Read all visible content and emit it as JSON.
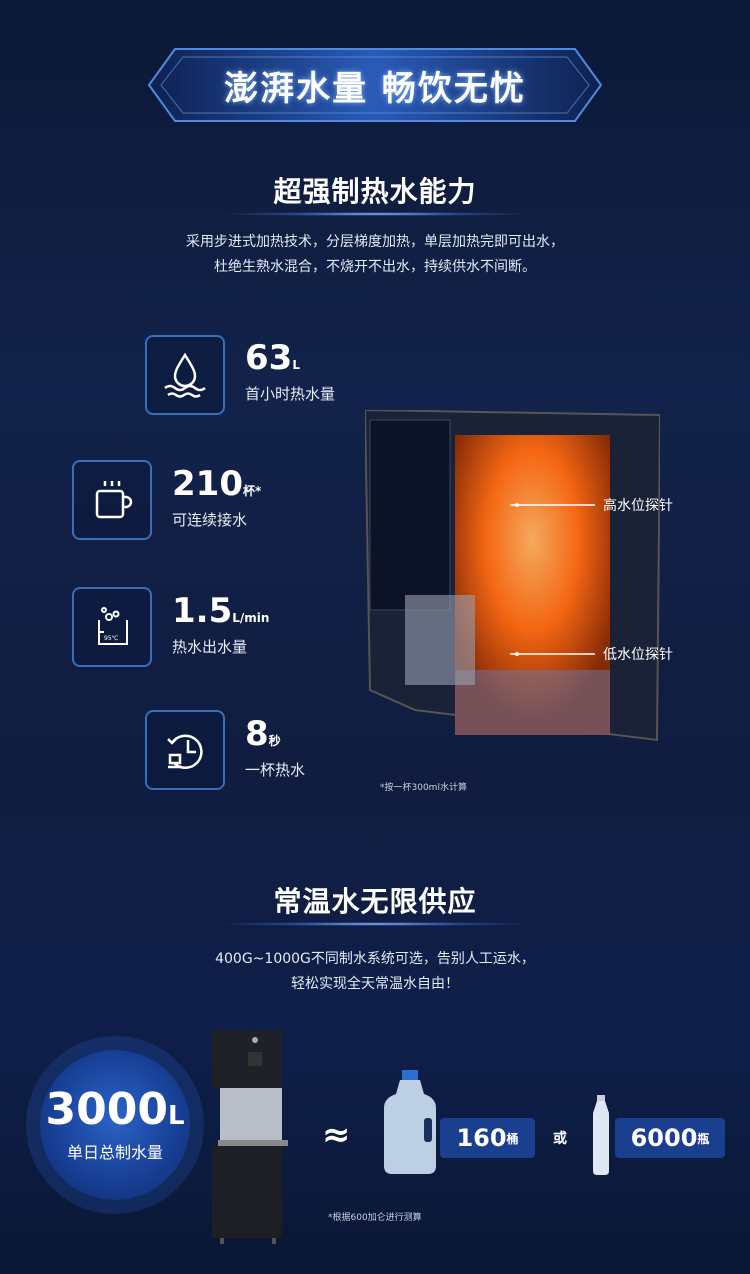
{
  "banner": {
    "title": "澎湃水量 畅饮无忧"
  },
  "section1": {
    "heading": "超强制热水能力",
    "desc": [
      "采用步进式加热技术，分层梯度加热，单层加热完即可出水，",
      "杜绝生熟水混合，不烧开不出水，持续供水不间断。"
    ],
    "features": [
      {
        "icon": "water-drop-icon",
        "value": "63",
        "unit": "L",
        "label": "首小时热水量"
      },
      {
        "icon": "coffee-cup-icon",
        "value": "210",
        "unit": "杯*",
        "label": "可连续接水"
      },
      {
        "icon": "hot-water-95c-icon",
        "value": "1.5",
        "unit": "L/min",
        "label": "热水出水量",
        "icon_text": "95℃"
      },
      {
        "icon": "clock-cup-icon",
        "value": "8",
        "unit": "秒",
        "label": "一杯热水"
      }
    ],
    "probe_high": "高水位探针",
    "probe_low": "低水位探针",
    "note": "*按一杯300ml水计算"
  },
  "section2": {
    "heading": "常温水无限供应",
    "desc": [
      "400G~1000G不同制水系统可选，告别人工运水，",
      "轻松实现全天常温水自由！"
    ],
    "capacity_value": "3000",
    "capacity_unit": "L",
    "capacity_label": "单日总制水量",
    "approx": "≈",
    "barrels_value": "160",
    "barrels_unit": "桶",
    "or": "或",
    "bottles_value": "6000",
    "bottles_unit": "瓶",
    "footnote": "*根据600加仑进行测算"
  },
  "colors": {
    "accent": "#3a6fb8",
    "background": "#13224a",
    "heat": "#ff7a1a"
  }
}
